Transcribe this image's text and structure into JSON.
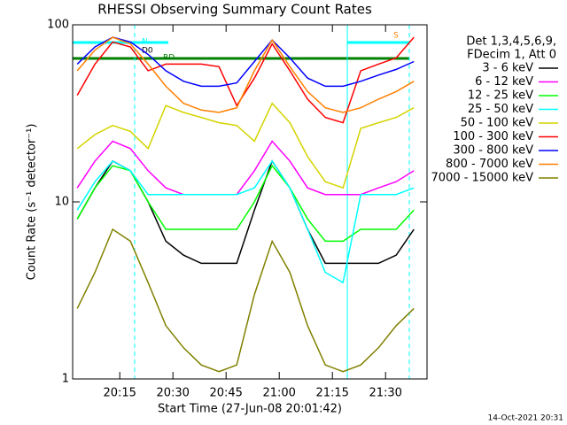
{
  "chart_data": {
    "type": "line",
    "title": "RHESSI Observing Summary Count Rates",
    "x_label": "Start Time (27-Jun-08 20:01:42)",
    "y_label": "Count Rate (s⁻¹ detector⁻¹)",
    "legend_header": [
      "Det 1,3,4,5,6,9,",
      "FDecim 1, Att 0"
    ],
    "timestamp": "14-Oct-2021 20:31",
    "annotations": [
      "N",
      "D0",
      "RD",
      "S"
    ],
    "log_y": true,
    "xlim": [
      1.7,
      101.7
    ],
    "ylim": [
      1,
      100
    ],
    "xticks": [
      {
        "value": 15,
        "label": "20:15"
      },
      {
        "value": 30,
        "label": "20:30"
      },
      {
        "value": 45,
        "label": "20:45"
      },
      {
        "value": 60,
        "label": "21:00"
      },
      {
        "value": 75,
        "label": "21:15"
      },
      {
        "value": 90,
        "label": "21:30"
      }
    ],
    "yticks": [
      1,
      10,
      100
    ],
    "x": [
      3,
      8,
      13,
      18,
      23,
      28,
      33,
      38,
      43,
      48,
      53,
      58,
      63,
      68,
      73,
      78,
      83,
      88,
      93,
      98
    ],
    "series": [
      {
        "name": "3 - 6 keV",
        "color": "#000000",
        "values": [
          8,
          12,
          17,
          15,
          10,
          6,
          5,
          4.5,
          4.5,
          4.5,
          9,
          17,
          12,
          7,
          4.5,
          4.5,
          4.5,
          4.5,
          5,
          7
        ]
      },
      {
        "name": "6 - 12 keV",
        "color": "#ff00ff",
        "values": [
          12,
          17,
          22,
          20,
          15,
          12,
          11,
          11,
          11,
          11,
          15,
          22,
          17,
          12,
          11,
          11,
          11,
          12,
          13,
          15
        ]
      },
      {
        "name": "12 - 25 keV",
        "color": "#00ff00",
        "values": [
          8,
          12,
          16,
          15,
          10,
          7,
          7,
          7,
          7,
          7,
          10,
          16,
          12,
          8,
          6,
          6,
          7,
          7,
          7,
          9
        ]
      },
      {
        "name": "25 - 50 keV",
        "color": "#00ffff",
        "values": [
          9,
          13,
          17,
          15,
          11,
          11,
          11,
          11,
          11,
          11,
          12,
          17,
          12,
          7,
          4,
          3.5,
          11,
          11,
          11,
          12
        ]
      },
      {
        "name": "50 - 100 keV",
        "color": "#d4d400",
        "values": [
          20,
          24,
          27,
          25,
          20,
          35,
          32,
          30,
          28,
          27,
          22,
          36,
          28,
          18,
          13,
          12,
          26,
          28,
          30,
          34
        ]
      },
      {
        "name": "100 - 300 keV",
        "color": "#ff0000",
        "values": [
          40,
          60,
          80,
          75,
          55,
          60,
          60,
          60,
          58,
          35,
          50,
          78,
          55,
          38,
          30,
          28,
          55,
          60,
          65,
          85
        ]
      },
      {
        "name": "300 - 800 keV",
        "color": "#0000ff",
        "values": [
          60,
          75,
          85,
          80,
          68,
          55,
          48,
          45,
          45,
          47,
          62,
          82,
          65,
          50,
          45,
          45,
          48,
          52,
          56,
          62
        ]
      },
      {
        "name": "800 - 7000 keV",
        "color": "#ff8000",
        "values": [
          55,
          72,
          85,
          78,
          60,
          45,
          36,
          33,
          32,
          34,
          55,
          82,
          58,
          42,
          34,
          32,
          34,
          38,
          42,
          48
        ]
      },
      {
        "name": "7000 - 15000 keV",
        "color": "#808000",
        "values": [
          2.5,
          4,
          7,
          6,
          3.5,
          2,
          1.5,
          1.2,
          1.1,
          1.2,
          3,
          6,
          4,
          2,
          1.2,
          1.1,
          1.2,
          1.5,
          2,
          2.5
        ]
      }
    ]
  }
}
